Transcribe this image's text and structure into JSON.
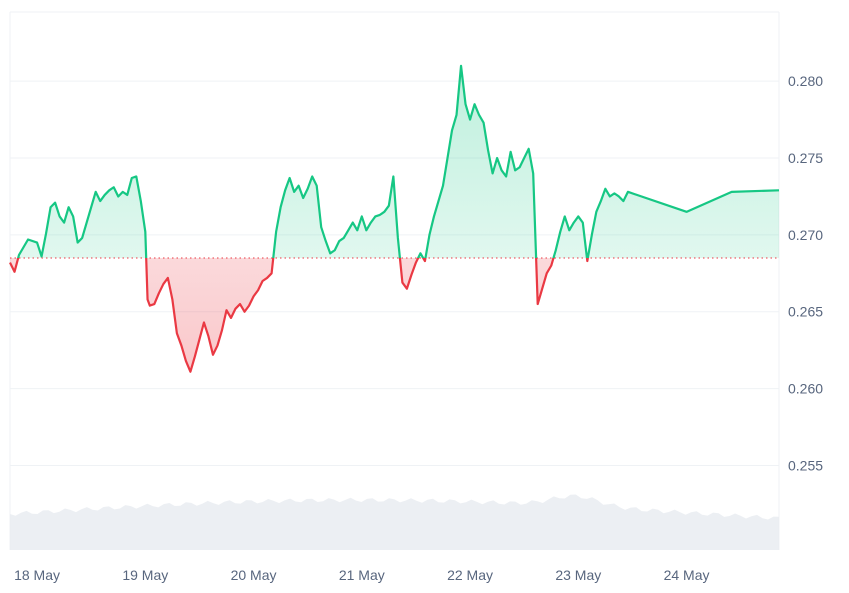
{
  "colors": {
    "up": "#16c784",
    "down": "#ea3943",
    "grid": "#eff2f5",
    "volume": "#e9ecf1",
    "baseline": "#ea3943",
    "axis_text": "#58667e"
  },
  "chart_data": {
    "type": "line",
    "baseline": 0.2685,
    "ylim": [
      0.2495,
      0.2845
    ],
    "xlim": [
      "2024-05-17T18:00",
      "2024-05-24T20:30"
    ],
    "y_ticks": [
      "0.280",
      "0.275",
      "0.270",
      "0.265",
      "0.260",
      "0.255"
    ],
    "y_tick_values": [
      0.28,
      0.275,
      0.27,
      0.265,
      0.26,
      0.255
    ],
    "x_ticks": [
      "18 May",
      "19 May",
      "20 May",
      "21 May",
      "22 May",
      "23 May",
      "24 May"
    ],
    "x_tick_values": [
      "2024-05-18T00:00",
      "2024-05-19T00:00",
      "2024-05-20T00:00",
      "2024-05-21T00:00",
      "2024-05-22T00:00",
      "2024-05-23T00:00",
      "2024-05-24T00:00"
    ],
    "grid": true,
    "series": [
      {
        "points": [
          [
            "2024-05-17T18:00",
            0.2682
          ],
          [
            "2024-05-17T19:00",
            0.2676
          ],
          [
            "2024-05-17T20:00",
            0.2687
          ],
          [
            "2024-05-17T22:00",
            0.2697
          ],
          [
            "2024-05-18T00:00",
            0.2695
          ],
          [
            "2024-05-18T01:00",
            0.2686
          ],
          [
            "2024-05-18T02:00",
            0.2701
          ],
          [
            "2024-05-18T03:00",
            0.2718
          ],
          [
            "2024-05-18T04:00",
            0.2721
          ],
          [
            "2024-05-18T05:00",
            0.2712
          ],
          [
            "2024-05-18T06:00",
            0.2708
          ],
          [
            "2024-05-18T07:00",
            0.2718
          ],
          [
            "2024-05-18T08:00",
            0.2712
          ],
          [
            "2024-05-18T09:00",
            0.2695
          ],
          [
            "2024-05-18T10:00",
            0.2698
          ],
          [
            "2024-05-18T11:00",
            0.2708
          ],
          [
            "2024-05-18T12:00",
            0.2718
          ],
          [
            "2024-05-18T13:00",
            0.2728
          ],
          [
            "2024-05-18T14:00",
            0.2722
          ],
          [
            "2024-05-18T15:00",
            0.2726
          ],
          [
            "2024-05-18T16:00",
            0.2729
          ],
          [
            "2024-05-18T17:00",
            0.2731
          ],
          [
            "2024-05-18T18:00",
            0.2725
          ],
          [
            "2024-05-18T19:00",
            0.2728
          ],
          [
            "2024-05-18T20:00",
            0.2726
          ],
          [
            "2024-05-18T21:00",
            0.2737
          ],
          [
            "2024-05-18T22:00",
            0.2738
          ],
          [
            "2024-05-18T23:00",
            0.2722
          ],
          [
            "2024-05-19T00:00",
            0.2702
          ],
          [
            "2024-05-19T00:30",
            0.2658
          ],
          [
            "2024-05-19T01:00",
            0.2654
          ],
          [
            "2024-05-19T02:00",
            0.2655
          ],
          [
            "2024-05-19T03:00",
            0.2662
          ],
          [
            "2024-05-19T04:00",
            0.2668
          ],
          [
            "2024-05-19T05:00",
            0.2672
          ],
          [
            "2024-05-19T06:00",
            0.2658
          ],
          [
            "2024-05-19T07:00",
            0.2636
          ],
          [
            "2024-05-19T08:00",
            0.2628
          ],
          [
            "2024-05-19T09:00",
            0.2618
          ],
          [
            "2024-05-19T10:00",
            0.2611
          ],
          [
            "2024-05-19T11:00",
            0.2621
          ],
          [
            "2024-05-19T12:00",
            0.2632
          ],
          [
            "2024-05-19T13:00",
            0.2643
          ],
          [
            "2024-05-19T14:00",
            0.2634
          ],
          [
            "2024-05-19T15:00",
            0.2622
          ],
          [
            "2024-05-19T16:00",
            0.2628
          ],
          [
            "2024-05-19T17:00",
            0.2638
          ],
          [
            "2024-05-19T18:00",
            0.2651
          ],
          [
            "2024-05-19T19:00",
            0.2646
          ],
          [
            "2024-05-19T20:00",
            0.2652
          ],
          [
            "2024-05-19T21:00",
            0.2655
          ],
          [
            "2024-05-19T22:00",
            0.265
          ],
          [
            "2024-05-19T23:00",
            0.2654
          ],
          [
            "2024-05-20T00:00",
            0.266
          ],
          [
            "2024-05-20T01:00",
            0.2664
          ],
          [
            "2024-05-20T02:00",
            0.267
          ],
          [
            "2024-05-20T03:00",
            0.2672
          ],
          [
            "2024-05-20T04:00",
            0.2675
          ],
          [
            "2024-05-20T05:00",
            0.2702
          ],
          [
            "2024-05-20T06:00",
            0.2718
          ],
          [
            "2024-05-20T07:00",
            0.2729
          ],
          [
            "2024-05-20T08:00",
            0.2737
          ],
          [
            "2024-05-20T09:00",
            0.2728
          ],
          [
            "2024-05-20T10:00",
            0.2732
          ],
          [
            "2024-05-20T11:00",
            0.2724
          ],
          [
            "2024-05-20T12:00",
            0.273
          ],
          [
            "2024-05-20T13:00",
            0.2738
          ],
          [
            "2024-05-20T14:00",
            0.2732
          ],
          [
            "2024-05-20T15:00",
            0.2705
          ],
          [
            "2024-05-20T16:00",
            0.2696
          ],
          [
            "2024-05-20T17:00",
            0.2688
          ],
          [
            "2024-05-20T18:00",
            0.269
          ],
          [
            "2024-05-20T19:00",
            0.2696
          ],
          [
            "2024-05-20T20:00",
            0.2698
          ],
          [
            "2024-05-20T21:00",
            0.2703
          ],
          [
            "2024-05-20T22:00",
            0.2708
          ],
          [
            "2024-05-20T23:00",
            0.2703
          ],
          [
            "2024-05-21T00:00",
            0.2712
          ],
          [
            "2024-05-21T01:00",
            0.2703
          ],
          [
            "2024-05-21T02:00",
            0.2708
          ],
          [
            "2024-05-21T03:00",
            0.2712
          ],
          [
            "2024-05-21T04:00",
            0.2713
          ],
          [
            "2024-05-21T05:00",
            0.2715
          ],
          [
            "2024-05-21T06:00",
            0.2719
          ],
          [
            "2024-05-21T07:00",
            0.2738
          ],
          [
            "2024-05-21T08:00",
            0.2698
          ],
          [
            "2024-05-21T09:00",
            0.2669
          ],
          [
            "2024-05-21T10:00",
            0.2665
          ],
          [
            "2024-05-21T11:00",
            0.2674
          ],
          [
            "2024-05-21T12:00",
            0.2682
          ],
          [
            "2024-05-21T13:00",
            0.2688
          ],
          [
            "2024-05-21T14:00",
            0.2683
          ],
          [
            "2024-05-21T15:00",
            0.27
          ],
          [
            "2024-05-21T16:00",
            0.2712
          ],
          [
            "2024-05-21T17:00",
            0.2722
          ],
          [
            "2024-05-21T18:00",
            0.2732
          ],
          [
            "2024-05-21T19:00",
            0.275
          ],
          [
            "2024-05-21T20:00",
            0.2768
          ],
          [
            "2024-05-21T21:00",
            0.2778
          ],
          [
            "2024-05-21T22:00",
            0.281
          ],
          [
            "2024-05-21T23:00",
            0.2785
          ],
          [
            "2024-05-22T00:00",
            0.2775
          ],
          [
            "2024-05-22T01:00",
            0.2785
          ],
          [
            "2024-05-22T02:00",
            0.2778
          ],
          [
            "2024-05-22T03:00",
            0.2773
          ],
          [
            "2024-05-22T04:00",
            0.2755
          ],
          [
            "2024-05-22T05:00",
            0.274
          ],
          [
            "2024-05-22T06:00",
            0.275
          ],
          [
            "2024-05-22T07:00",
            0.2742
          ],
          [
            "2024-05-22T08:00",
            0.2738
          ],
          [
            "2024-05-22T09:00",
            0.2754
          ],
          [
            "2024-05-22T10:00",
            0.2742
          ],
          [
            "2024-05-22T11:00",
            0.2744
          ],
          [
            "2024-05-22T12:00",
            0.275
          ],
          [
            "2024-05-22T13:00",
            0.2756
          ],
          [
            "2024-05-22T14:00",
            0.274
          ],
          [
            "2024-05-22T15:00",
            0.2655
          ],
          [
            "2024-05-22T16:00",
            0.2665
          ],
          [
            "2024-05-22T17:00",
            0.2675
          ],
          [
            "2024-05-22T18:00",
            0.268
          ],
          [
            "2024-05-22T19:00",
            0.269
          ],
          [
            "2024-05-22T20:00",
            0.2702
          ],
          [
            "2024-05-22T21:00",
            0.2712
          ],
          [
            "2024-05-22T22:00",
            0.2703
          ],
          [
            "2024-05-22T23:00",
            0.2708
          ],
          [
            "2024-05-23T00:00",
            0.2712
          ],
          [
            "2024-05-23T01:00",
            0.2708
          ],
          [
            "2024-05-23T02:00",
            0.2683
          ],
          [
            "2024-05-23T03:00",
            0.27
          ],
          [
            "2024-05-23T04:00",
            0.2715
          ],
          [
            "2024-05-23T05:00",
            0.2722
          ],
          [
            "2024-05-23T06:00",
            0.273
          ],
          [
            "2024-05-23T07:00",
            0.2725
          ],
          [
            "2024-05-23T08:00",
            0.2727
          ],
          [
            "2024-05-23T09:00",
            0.2725
          ],
          [
            "2024-05-23T10:00",
            0.2722
          ],
          [
            "2024-05-23T11:00",
            0.2728
          ],
          [
            "2024-05-24T00:00",
            0.2715
          ],
          [
            "2024-05-24T10:00",
            0.2728
          ],
          [
            "2024-05-24T20:30",
            0.2729
          ]
        ]
      }
    ]
  }
}
